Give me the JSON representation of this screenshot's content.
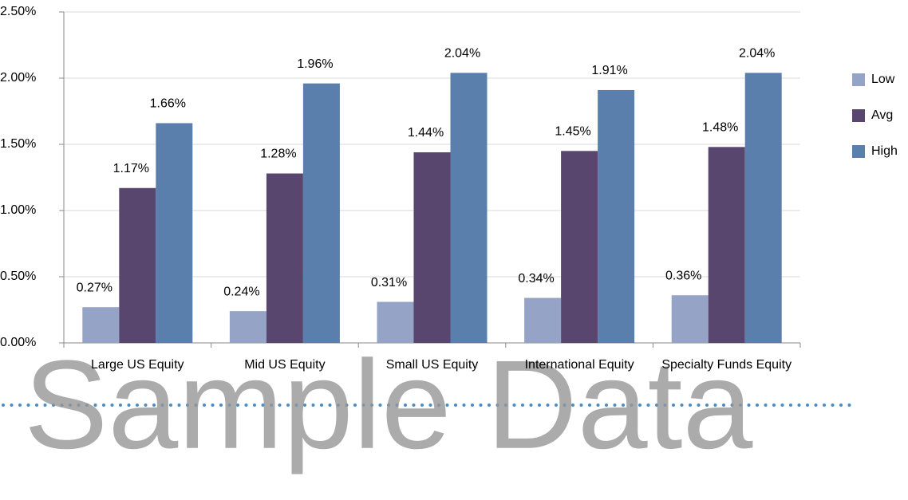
{
  "chart_data": {
    "type": "bar",
    "categories": [
      "Large US Equity",
      "Mid US Equity",
      "Small US Equity",
      "International Equity",
      "Specialty Funds Equity"
    ],
    "series": [
      {
        "name": "Low",
        "color": "#94a3c6",
        "values": [
          0.27,
          0.24,
          0.31,
          0.34,
          0.36
        ],
        "value_labels": [
          "0.27%",
          "0.24%",
          "0.31%",
          "0.34%",
          "0.36%"
        ]
      },
      {
        "name": "Avg",
        "color": "#58466f",
        "values": [
          1.17,
          1.28,
          1.44,
          1.45,
          1.48
        ],
        "value_labels": [
          "1.17%",
          "1.28%",
          "1.44%",
          "1.45%",
          "1.48%"
        ]
      },
      {
        "name": "High",
        "color": "#5b7fad",
        "values": [
          1.66,
          1.96,
          2.04,
          1.91,
          2.04
        ],
        "value_labels": [
          "1.66%",
          "1.96%",
          "2.04%",
          "1.91%",
          "2.04%"
        ]
      }
    ],
    "ylim": [
      0,
      2.5
    ],
    "yticks": [
      {
        "value": 0,
        "label": "0.00%"
      },
      {
        "value": 0.5,
        "label": "0.50%"
      },
      {
        "value": 1,
        "label": "1.00%"
      },
      {
        "value": 1.5,
        "label": "1.50%"
      },
      {
        "value": 2,
        "label": "2.00%"
      },
      {
        "value": 2.5,
        "label": "2.50%"
      }
    ],
    "grid": true,
    "legend": "right",
    "watermark": "Sample Data"
  }
}
